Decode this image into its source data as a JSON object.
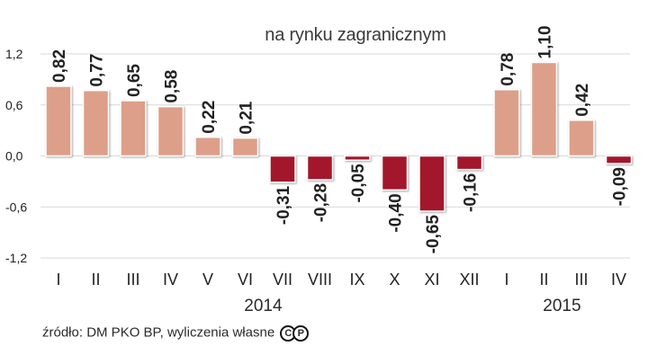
{
  "chart_data": {
    "type": "bar",
    "title": "",
    "subtitle": "na rynku zagranicznym",
    "categories": [
      "I",
      "II",
      "III",
      "IV",
      "V",
      "VI",
      "VII",
      "VIII",
      "IX",
      "X",
      "XI",
      "XII",
      "I",
      "II",
      "III",
      "IV"
    ],
    "values": [
      0.82,
      0.77,
      0.65,
      0.58,
      0.22,
      0.21,
      -0.31,
      -0.28,
      -0.05,
      -0.4,
      -0.65,
      -0.16,
      0.78,
      1.1,
      0.42,
      -0.09
    ],
    "value_labels": [
      "0,82",
      "0,77",
      "0,65",
      "0,58",
      "0,22",
      "0,21",
      "-0,31",
      "-0,28",
      "-0,05",
      "-0,40",
      "-0,65",
      "-0,16",
      "0,78",
      "1,10",
      "0,42",
      "-0,09"
    ],
    "year_groups": [
      {
        "label": "2014",
        "start": 0,
        "end": 11
      },
      {
        "label": "2015",
        "start": 12,
        "end": 15
      }
    ],
    "ylim": [
      -1.2,
      1.2
    ],
    "yticks": [
      1.2,
      0.6,
      0.0,
      -0.6,
      -1.2
    ],
    "ytick_labels": [
      "1,2",
      "0,6",
      "0,0",
      "-0,6",
      "-1,2"
    ],
    "grid": true,
    "colors": {
      "positive": "#dd9f89",
      "negative": "#a3172c",
      "grid": "#d9d9d9",
      "text": "#222222"
    }
  },
  "footer": {
    "source": "źródło: DM PKO BP, wyliczenia własne",
    "logo_letters": [
      "C",
      "P"
    ]
  }
}
